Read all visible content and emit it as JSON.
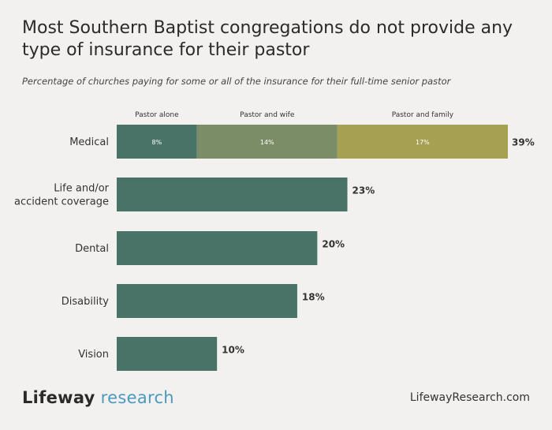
{
  "title": "Most Southern Baptist congregations do not provide any type of insurance for their pastor",
  "subtitle": "Percentage of churches paying for some or all of the insurance for their full-time senior pastor",
  "footer": {
    "logo_brand": "Lifeway",
    "logo_sub": "research",
    "url": "LifewayResearch.com"
  },
  "colors": {
    "pastor_alone": "#487366",
    "pastor_and_wife": "#7b8d66",
    "pastor_and_family": "#a5a052",
    "single": "#487366",
    "background": "#f2f1ef"
  },
  "chart_data": {
    "type": "bar",
    "orientation": "horizontal",
    "categories": [
      "Medical",
      "Life and/or accident coverage",
      "Dental",
      "Disability",
      "Vision"
    ],
    "category_lines": [
      [
        "Medical"
      ],
      [
        "Life and/or",
        "accident coverage"
      ],
      [
        "Dental"
      ],
      [
        "Disability"
      ],
      [
        "Vision"
      ]
    ],
    "values": [
      39,
      23,
      20,
      18,
      10
    ],
    "value_labels": [
      "39%",
      "23%",
      "20%",
      "18%",
      "10%"
    ],
    "stacked": {
      "category": "Medical",
      "segments": [
        {
          "name": "Pastor alone",
          "value": 8,
          "label": "8%"
        },
        {
          "name": "Pastor and wife",
          "value": 14,
          "label": "14%"
        },
        {
          "name": "Pastor and family",
          "value": 17,
          "label": "17%"
        }
      ]
    },
    "xlim": [
      0,
      39
    ],
    "grid": false,
    "legend": "top"
  }
}
